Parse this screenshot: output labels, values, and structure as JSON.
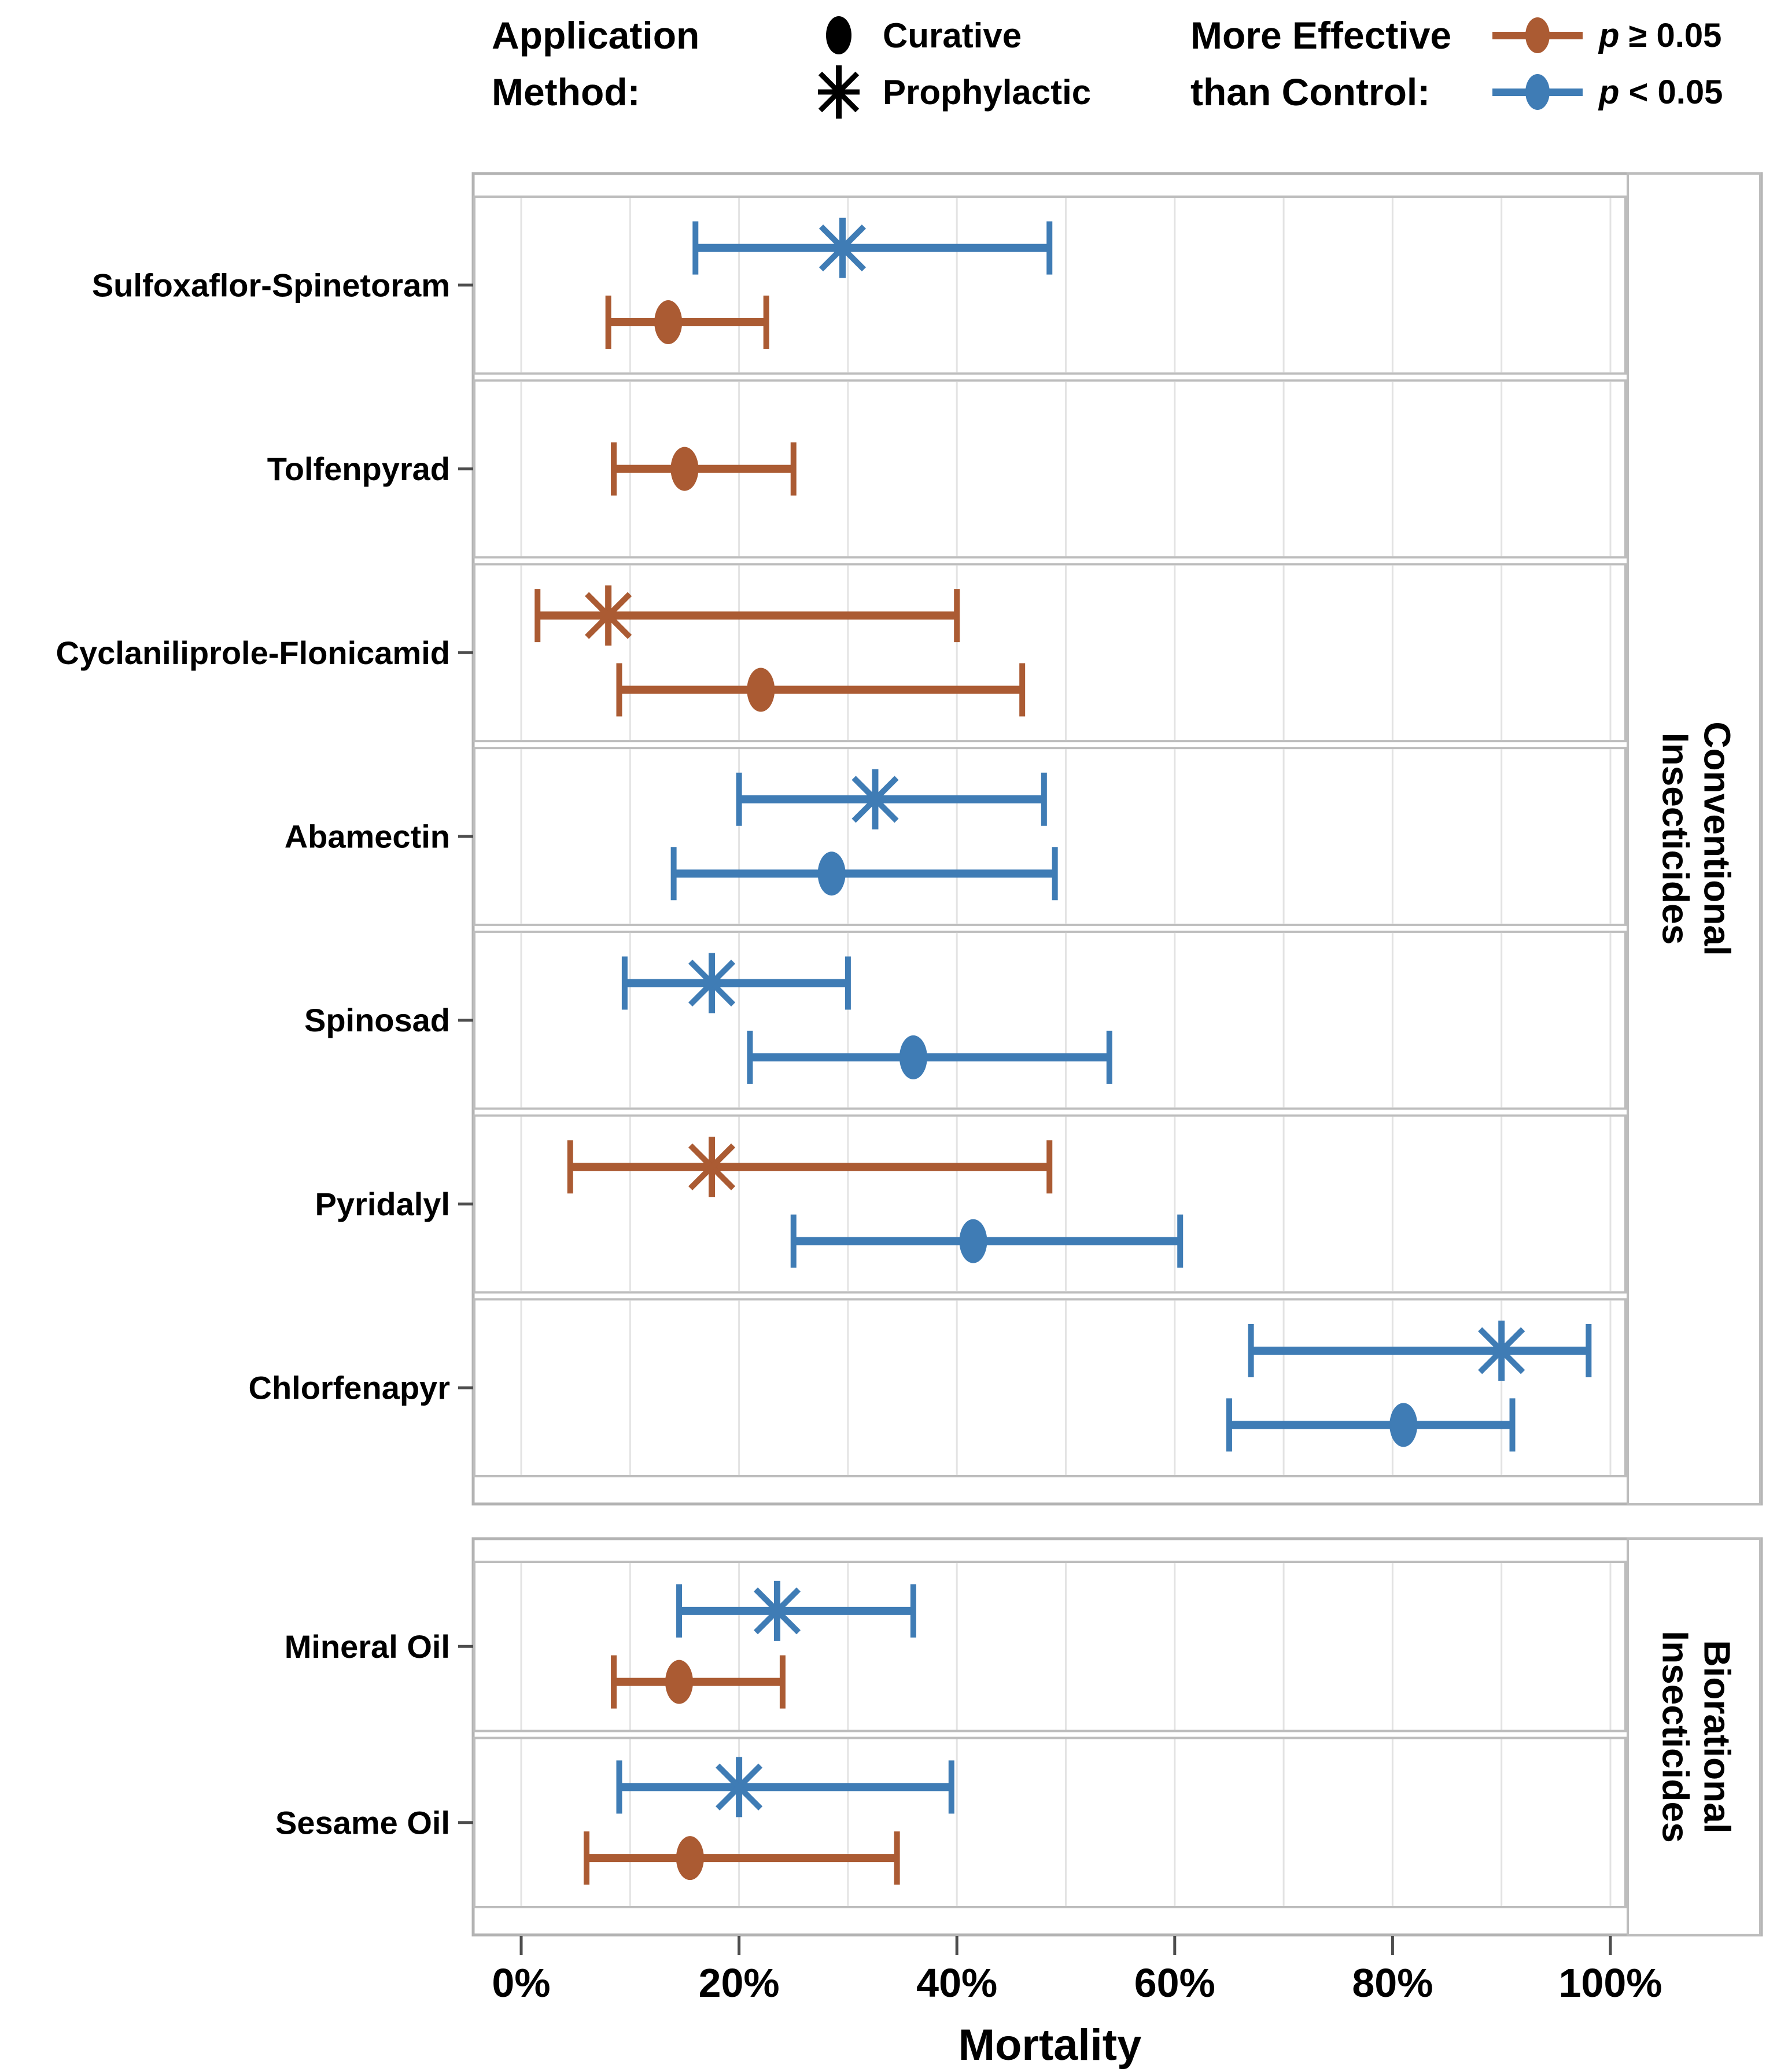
{
  "legend": {
    "application_method": {
      "title_lines": [
        "Application",
        "Method:"
      ],
      "items": [
        {
          "label": "Curative",
          "marker": "dot"
        },
        {
          "label": "Prophylactic",
          "marker": "asterisk"
        }
      ]
    },
    "effectiveness": {
      "title_lines": [
        "More Effective",
        "than Control:"
      ],
      "items": [
        {
          "p": "p",
          "rest": " ≥ 0.05",
          "color": "#ab5b33"
        },
        {
          "p": "p",
          "rest": " < 0.05",
          "color": "#3f7cb5"
        }
      ]
    }
  },
  "chart_data": {
    "type": "scatter",
    "subtype": "forest-dot-whisker",
    "x_axis": {
      "label": "Mortality",
      "range": [
        0,
        100
      ],
      "gridline_step": 10,
      "ticks": [
        {
          "value": 0,
          "label": "0%"
        },
        {
          "value": 20,
          "label": "20%"
        },
        {
          "value": 40,
          "label": "40%"
        },
        {
          "value": 60,
          "label": "60%"
        },
        {
          "value": 80,
          "label": "80%"
        },
        {
          "value": 100,
          "label": "100%"
        }
      ]
    },
    "colors": {
      "significant": "#3f7cb5",
      "nonsignificant": "#ab5b33",
      "panel_border": "#bdbdbd",
      "outer_border": "#b3b3b3",
      "gridline": "#e3e3e3",
      "tick": "#4d4d4d",
      "text": "#000000"
    },
    "groups": [
      {
        "label_lines": [
          "Conventional",
          "Insecticides"
        ],
        "rows": [
          {
            "name": "Sulfoxaflor-Spinetoram",
            "points": [
              {
                "method": "Prophylactic",
                "x": 29.5,
                "lo": 16,
                "hi": 48.5,
                "significant": true
              },
              {
                "method": "Curative",
                "x": 13.5,
                "lo": 8,
                "hi": 22.5,
                "significant": false
              }
            ]
          },
          {
            "name": "Tolfenpyrad",
            "points": [
              {
                "method": "Curative",
                "x": 15,
                "lo": 8.5,
                "hi": 25,
                "significant": false
              }
            ]
          },
          {
            "name": "Cyclaniliprole-Flonicamid",
            "points": [
              {
                "method": "Prophylactic",
                "x": 8,
                "lo": 1.5,
                "hi": 40,
                "significant": false
              },
              {
                "method": "Curative",
                "x": 22,
                "lo": 9,
                "hi": 46,
                "significant": false
              }
            ]
          },
          {
            "name": "Abamectin",
            "points": [
              {
                "method": "Prophylactic",
                "x": 32.5,
                "lo": 20,
                "hi": 48,
                "significant": true
              },
              {
                "method": "Curative",
                "x": 28.5,
                "lo": 14,
                "hi": 49,
                "significant": true
              }
            ]
          },
          {
            "name": "Spinosad",
            "points": [
              {
                "method": "Prophylactic",
                "x": 17.5,
                "lo": 9.5,
                "hi": 30,
                "significant": true
              },
              {
                "method": "Curative",
                "x": 36,
                "lo": 21,
                "hi": 54,
                "significant": true
              }
            ]
          },
          {
            "name": "Pyridalyl",
            "points": [
              {
                "method": "Prophylactic",
                "x": 17.5,
                "lo": 4.5,
                "hi": 48.5,
                "significant": false
              },
              {
                "method": "Curative",
                "x": 41.5,
                "lo": 25,
                "hi": 60.5,
                "significant": true
              }
            ]
          },
          {
            "name": "Chlorfenapyr",
            "points": [
              {
                "method": "Prophylactic",
                "x": 90,
                "lo": 67,
                "hi": 98,
                "significant": true
              },
              {
                "method": "Curative",
                "x": 81,
                "lo": 65,
                "hi": 91,
                "significant": true
              }
            ]
          }
        ]
      },
      {
        "label_lines": [
          "Biorational",
          "Insecticides"
        ],
        "rows": [
          {
            "name": "Mineral Oil",
            "points": [
              {
                "method": "Prophylactic",
                "x": 23.5,
                "lo": 14.5,
                "hi": 36,
                "significant": true
              },
              {
                "method": "Curative",
                "x": 14.5,
                "lo": 8.5,
                "hi": 24,
                "significant": false
              }
            ]
          },
          {
            "name": "Sesame Oil",
            "points": [
              {
                "method": "Prophylactic",
                "x": 20,
                "lo": 9,
                "hi": 39.5,
                "significant": true
              },
              {
                "method": "Curative",
                "x": 15.5,
                "lo": 6,
                "hi": 34.5,
                "significant": false
              }
            ]
          }
        ]
      }
    ]
  }
}
